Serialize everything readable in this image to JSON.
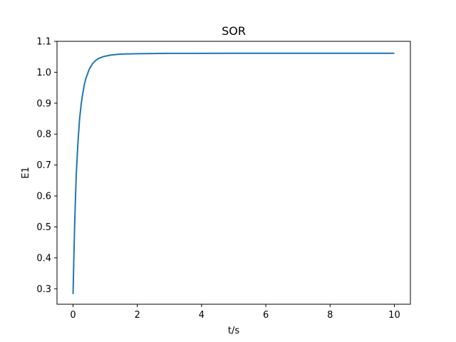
{
  "chart_data": {
    "type": "line",
    "title": "SOR",
    "xlabel": "t/s",
    "ylabel": "E1",
    "xlim": [
      -0.5,
      10.5
    ],
    "ylim": [
      0.25,
      1.1
    ],
    "x_ticks": [
      0,
      2,
      4,
      6,
      8,
      10
    ],
    "x_tick_labels": [
      "0",
      "2",
      "4",
      "6",
      "8",
      "10"
    ],
    "y_ticks": [
      0.3,
      0.4,
      0.5,
      0.6,
      0.7,
      0.8,
      0.9,
      1.0,
      1.1
    ],
    "y_tick_labels": [
      "0.3",
      "0.4",
      "0.5",
      "0.6",
      "0.7",
      "0.8",
      "0.9",
      "1.0",
      "1.1"
    ],
    "grid": false,
    "legend": "none",
    "series": [
      {
        "color": "#1f77b4",
        "x": [
          0.0,
          0.02,
          0.05,
          0.08,
          0.1,
          0.15,
          0.2,
          0.25,
          0.3,
          0.35,
          0.4,
          0.5,
          0.6,
          0.7,
          0.8,
          0.9,
          1.0,
          1.2,
          1.4,
          1.6,
          1.8,
          2.0,
          2.5,
          3.0,
          3.5,
          4.0,
          5.0,
          6.0,
          7.0,
          8.0,
          9.0,
          10.0
        ],
        "y": [
          0.283,
          0.38,
          0.51,
          0.61,
          0.67,
          0.77,
          0.845,
          0.895,
          0.93,
          0.96,
          0.98,
          1.009,
          1.027,
          1.038,
          1.045,
          1.049,
          1.052,
          1.056,
          1.058,
          1.059,
          1.0595,
          1.06,
          1.0605,
          1.061,
          1.061,
          1.0612,
          1.0613,
          1.0613,
          1.0613,
          1.0613,
          1.0613,
          1.0613
        ]
      }
    ]
  }
}
